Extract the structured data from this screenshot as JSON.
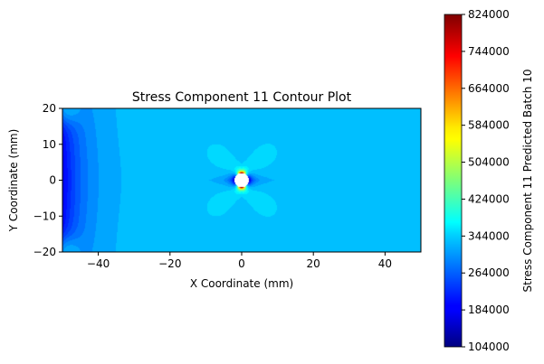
{
  "chart_data": {
    "type": "heatmap",
    "title": "Stress Component 11 Contour Plot",
    "xlabel": "X Coordinate (mm)",
    "ylabel": "Y Coordinate (mm)",
    "xlim": [
      -50,
      50
    ],
    "ylim": [
      -20,
      20
    ],
    "x_ticks": [
      -40,
      -20,
      0,
      20,
      40
    ],
    "y_ticks": [
      -20,
      -10,
      0,
      10,
      20
    ],
    "hole": {
      "center": [
        0,
        0
      ],
      "radius": 2
    },
    "colorbar": {
      "label": "Stress Component 11 Predicted Batch 10",
      "colormap": "jet",
      "range": [
        104000,
        824000
      ],
      "ticks": [
        104000,
        184000,
        264000,
        344000,
        424000,
        504000,
        584000,
        664000,
        744000,
        824000
      ]
    },
    "field_description": {
      "background_value": 330000,
      "left_edge_min_value": 190000,
      "hole_side_min_value": 104000,
      "hole_top_bottom_max_value": 824000,
      "lobe_value": 380000
    }
  }
}
